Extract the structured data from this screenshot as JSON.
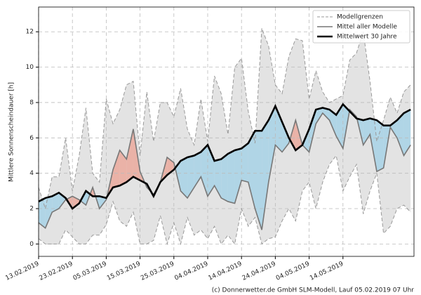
{
  "chart_data": {
    "type": "line",
    "ylabel": "Mittlere Sonnenscheindauer [h]",
    "footer": "(c) Donnerwetter.de GmbH SLM-Modell, Lauf 05.02.2019 07 Uhr",
    "x": [
      0,
      2,
      4,
      6,
      8,
      10,
      12,
      14,
      16,
      18,
      20,
      22,
      24,
      26,
      28,
      30,
      32,
      34,
      36,
      38,
      40,
      42,
      44,
      46,
      48,
      50,
      52,
      54,
      56,
      58,
      60,
      62,
      64,
      66,
      68,
      70,
      72,
      74,
      76,
      78,
      80,
      82,
      84,
      86,
      88,
      90,
      92,
      94,
      96,
      98,
      100,
      102,
      104,
      106,
      108,
      110
    ],
    "series": [
      {
        "name": "Modellgrenzen",
        "color": "#999999",
        "band_color": "#e3e3e3",
        "values": [
          3.2,
          2.0,
          3.8,
          3.8,
          6.0,
          3.0,
          5.0,
          7.7,
          4.0,
          3.5,
          8.2,
          6.8,
          7.6,
          9.0,
          9.2,
          5.0,
          8.6,
          5.8,
          8.0,
          8.0,
          7.2,
          8.8,
          6.5,
          5.6,
          8.2,
          5.8,
          9.5,
          8.5,
          6.2,
          10.0,
          10.5,
          7.5,
          5.7,
          12.2,
          11.2,
          9.0,
          8.5,
          10.6,
          11.6,
          11.5,
          8.2,
          9.8,
          8.6,
          8.0,
          8.2,
          8.4,
          10.4,
          10.8,
          12.0,
          9.2,
          5.8,
          7.0,
          8.3,
          7.4,
          8.6,
          9.0
        ],
        "lower": [
          0.3,
          0,
          0,
          0,
          0.8,
          0.4,
          0,
          0,
          0.5,
          0.5,
          1.1,
          2.4,
          1.3,
          1.0,
          1.8,
          0,
          0,
          0.2,
          1.6,
          0,
          1.2,
          0,
          1.5,
          0.5,
          0.8,
          0.3,
          1.0,
          0,
          0.5,
          0,
          2.0,
          1.0,
          1.5,
          0,
          0.3,
          0.4,
          1.3,
          2.0,
          1.3,
          3.0,
          3.5,
          2.0,
          3.5,
          4.5,
          5.0,
          3.0,
          3.8,
          4.5,
          1.7,
          3.0,
          4.0,
          0.6,
          1.0,
          2.0,
          2.2,
          1.8
        ]
      },
      {
        "name": "Mittel aller Modelle",
        "color": "#777777",
        "values": [
          1.2,
          0.9,
          1.8,
          2.0,
          2.5,
          2.7,
          2.5,
          2.2,
          3.2,
          2.0,
          2.5,
          4.2,
          5.3,
          4.8,
          6.5,
          4.1,
          3.2,
          2.8,
          3.5,
          4.9,
          4.6,
          3.0,
          2.6,
          3.2,
          3.8,
          2.7,
          3.3,
          2.6,
          2.4,
          2.3,
          3.6,
          3.5,
          2.0,
          0.8,
          3.5,
          5.6,
          5.2,
          5.7,
          7.0,
          5.6,
          5.2,
          6.8,
          7.4,
          7.0,
          6.1,
          5.4,
          7.6,
          7.2,
          5.6,
          6.2,
          4.1,
          4.3,
          6.6,
          6.0,
          5.0,
          5.6
        ]
      },
      {
        "name": "Mittelwert 30 Jahre",
        "color": "#000000",
        "values": [
          2.4,
          2.6,
          2.7,
          2.9,
          2.6,
          2.0,
          2.3,
          3.0,
          2.7,
          2.7,
          2.6,
          3.2,
          3.3,
          3.5,
          3.8,
          3.6,
          3.4,
          2.7,
          3.5,
          3.9,
          4.2,
          4.7,
          4.9,
          5.0,
          5.2,
          5.6,
          4.7,
          4.8,
          5.1,
          5.3,
          5.4,
          5.7,
          6.4,
          6.4,
          7.0,
          7.8,
          6.9,
          6.0,
          5.3,
          5.6,
          6.5,
          7.6,
          7.7,
          7.6,
          7.3,
          7.9,
          7.5,
          7.1,
          7.0,
          7.1,
          7.0,
          6.7,
          6.7,
          7.0,
          7.4,
          7.6
        ]
      }
    ],
    "fill_above": "#eba99c",
    "fill_below": "#a7d2e6",
    "xlim": [
      0,
      111
    ],
    "ylim": [
      -0.7,
      13.4
    ],
    "xticks": [
      {
        "value": 0,
        "label": "13.02.2019"
      },
      {
        "value": 10,
        "label": "23.02.2019"
      },
      {
        "value": 20,
        "label": "05.03.2019"
      },
      {
        "value": 30,
        "label": "15.03.2019"
      },
      {
        "value": 40,
        "label": "25.03.2019"
      },
      {
        "value": 50,
        "label": "04.04.2019"
      },
      {
        "value": 60,
        "label": "14.04.2019"
      },
      {
        "value": 70,
        "label": "24.04.2019"
      },
      {
        "value": 80,
        "label": "04.05.2019"
      },
      {
        "value": 90,
        "label": "14.05.2019"
      }
    ],
    "yticks": [
      0,
      2,
      4,
      6,
      8,
      10,
      12
    ],
    "grid": true,
    "legend": "upper right"
  }
}
